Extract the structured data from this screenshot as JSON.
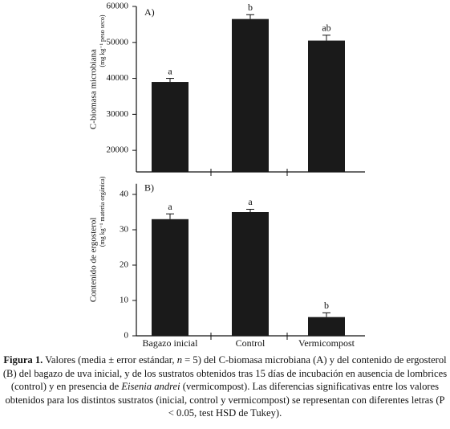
{
  "chart_data": [
    {
      "type": "bar",
      "panel_label": "A)",
      "y_label": "C-biomasa microbiana",
      "y_unit": "(mg kg⁻¹ peso seco)",
      "categories": [
        null,
        null,
        null
      ],
      "values": [
        39000,
        56500,
        50500
      ],
      "errors": [
        1000,
        1200,
        1500
      ],
      "annotations": [
        "a",
        "b",
        "ab"
      ],
      "color": "#1a1a1a",
      "ylim": [
        14000,
        60000
      ],
      "yticks": [
        20000,
        30000,
        40000,
        50000,
        60000
      ]
    },
    {
      "type": "bar",
      "panel_label": "B)",
      "y_label": "Contenido de ergosterol",
      "y_unit": "(mg kg⁻¹ materia orgánica)",
      "categories": [
        "Bagazo inicial",
        "Control",
        "Vermicompost"
      ],
      "values": [
        33,
        35,
        5.3
      ],
      "errors": [
        1.5,
        0.8,
        1.2
      ],
      "annotations": [
        "a",
        "a",
        "b"
      ],
      "color": "#1a1a1a",
      "ylim": [
        0,
        43
      ],
      "yticks": [
        0,
        10,
        20,
        30,
        40
      ]
    }
  ],
  "caption": {
    "label": "Figura 1.",
    "parts": [
      " Valores (media ± error estándar, ",
      "n",
      " = 5) del C-biomasa microbiana (A) y del contenido de ergosterol (B) del bagazo de uva inicial, y de los sustratos obtenidos tras 15 días de incubación en ausencia de lombrices (control) y en presencia de ",
      "Eisenia andrei",
      " (vermicompost). Las diferencias significativas entre los valores obtenidos para los distintos sustratos (inicial, control y vermicompost) se representan con diferentes letras (P < 0.05, test HSD de Tukey)."
    ]
  }
}
